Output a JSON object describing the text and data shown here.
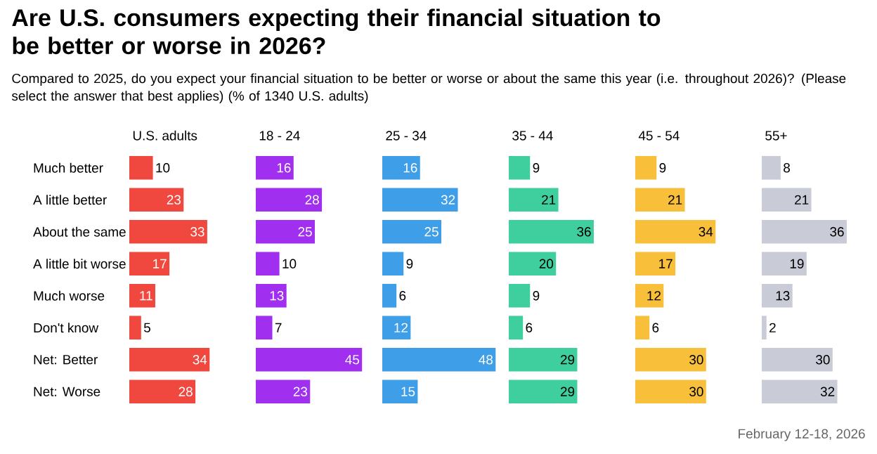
{
  "chart_data": [
    {
      "type": "other",
      "title": "Are U.S. consumers expecting their financial situation to be better or worse in 2026?",
      "subtitle": "Compared to 2025, do you expect your financial situation to be better or worse or about the same this year (i.e. throughout 2026)? (Please select the answer that best applies) (% of 1340 U.S. adults)",
      "annotations": [
        "February 12-18, 2026"
      ]
    },
    {
      "type": "bar",
      "orientation": "horizontal",
      "title": "U.S. adults",
      "categories": [
        "Much better",
        "A little better",
        "About the same",
        "A little bit worse",
        "Much worse",
        "Don't know",
        "Net: Better",
        "Net: Worse"
      ],
      "values": [
        10,
        23,
        33,
        17,
        11,
        5,
        34,
        28
      ],
      "color": "#f0483e",
      "data_labels": true,
      "tick_labels": "y"
    },
    {
      "type": "bar",
      "orientation": "horizontal",
      "title": "18 - 24",
      "categories": [
        null,
        null,
        null,
        null,
        null,
        null,
        null,
        null
      ],
      "values": [
        16,
        28,
        25,
        10,
        13,
        7,
        45,
        23
      ],
      "color": "#a02ff0",
      "data_labels": true,
      "tick_labels": false
    },
    {
      "type": "bar",
      "orientation": "horizontal",
      "title": "25 - 34",
      "categories": [
        null,
        null,
        null,
        null,
        null,
        null,
        null,
        null
      ],
      "values": [
        16,
        32,
        25,
        9,
        6,
        12,
        48,
        15
      ],
      "color": "#3f9ee8",
      "data_labels": true,
      "tick_labels": false
    },
    {
      "type": "bar",
      "orientation": "horizontal",
      "title": "35 - 44",
      "categories": [
        null,
        null,
        null,
        null,
        null,
        null,
        null,
        null
      ],
      "values": [
        9,
        21,
        36,
        20,
        9,
        6,
        29,
        29
      ],
      "color": "#3fcf9f",
      "data_labels": true,
      "tick_labels": false
    },
    {
      "type": "bar",
      "orientation": "horizontal",
      "title": "45 - 54",
      "categories": [
        null,
        null,
        null,
        null,
        null,
        null,
        null,
        null
      ],
      "values": [
        9,
        21,
        34,
        17,
        12,
        6,
        30,
        30
      ],
      "color": "#f8c03a",
      "data_labels": true,
      "tick_labels": false
    },
    {
      "type": "bar",
      "orientation": "horizontal",
      "title": "55+",
      "categories": [
        null,
        null,
        null,
        null,
        null,
        null,
        null,
        null
      ],
      "values": [
        8,
        21,
        36,
        19,
        13,
        2,
        30,
        32
      ],
      "color": "#c9ccd6",
      "data_labels": true,
      "tick_labels": false
    }
  ]
}
